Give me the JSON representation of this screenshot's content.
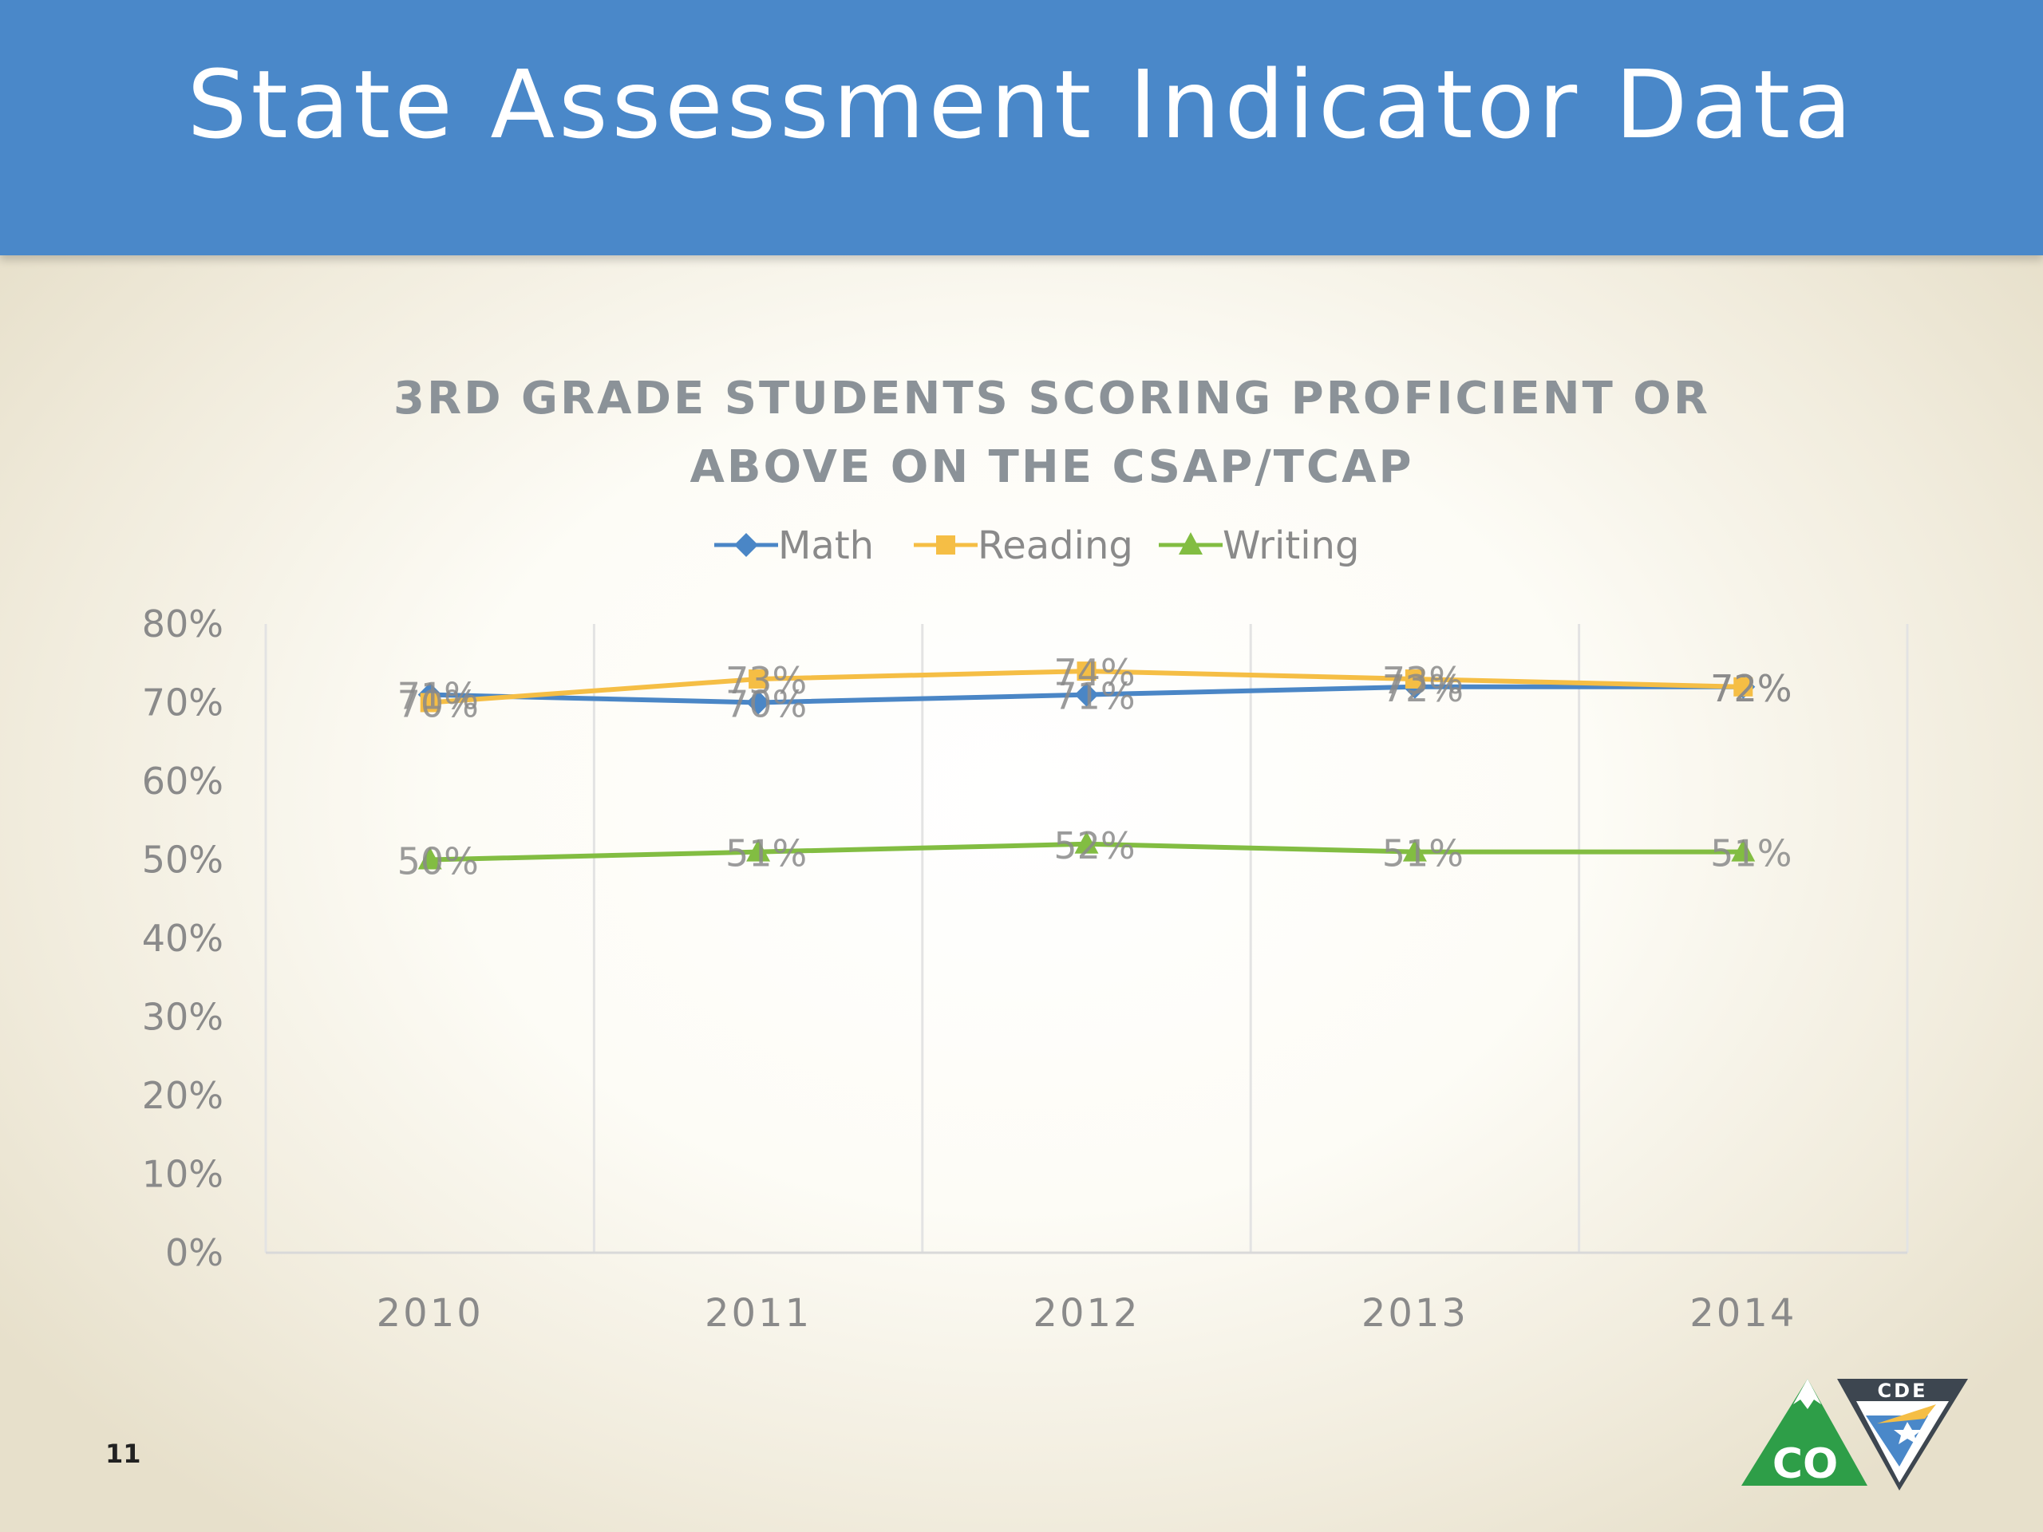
{
  "slide": {
    "title": "State Assessment Indicator Data",
    "page_number": "11",
    "logo_text_co": "CO",
    "logo_text_cde": "CDE",
    "colors": {
      "header": "#4a88c9"
    }
  },
  "chart_data": {
    "type": "line",
    "title_line1": "3RD GRADE STUDENTS SCORING PROFICIENT OR",
    "title_line2": "ABOVE ON THE CSAP/TCAP",
    "xlabel": "",
    "ylabel": "",
    "categories": [
      "2010",
      "2011",
      "2012",
      "2013",
      "2014"
    ],
    "ylim": [
      0,
      0.8
    ],
    "yticks": [
      "0%",
      "10%",
      "20%",
      "30%",
      "40%",
      "50%",
      "60%",
      "70%",
      "80%"
    ],
    "grid": "vertical",
    "legend_position": "top",
    "series": [
      {
        "name": "Math",
        "color": "#4a86c6",
        "marker": "diamond",
        "values": [
          0.71,
          0.7,
          0.71,
          0.72,
          0.72
        ],
        "labels": [
          "71%",
          "70%",
          "71%",
          "72%",
          "72%"
        ]
      },
      {
        "name": "Reading",
        "color": "#f5be45",
        "marker": "square",
        "values": [
          0.7,
          0.73,
          0.74,
          0.73,
          0.72
        ],
        "labels": [
          "70%",
          "73%",
          "74%",
          "73%",
          "72%"
        ]
      },
      {
        "name": "Writing",
        "color": "#82bd42",
        "marker": "triangle",
        "values": [
          0.5,
          0.51,
          0.52,
          0.51,
          0.51
        ],
        "labels": [
          "50%",
          "51%",
          "52%",
          "51%",
          "51%"
        ]
      }
    ]
  }
}
